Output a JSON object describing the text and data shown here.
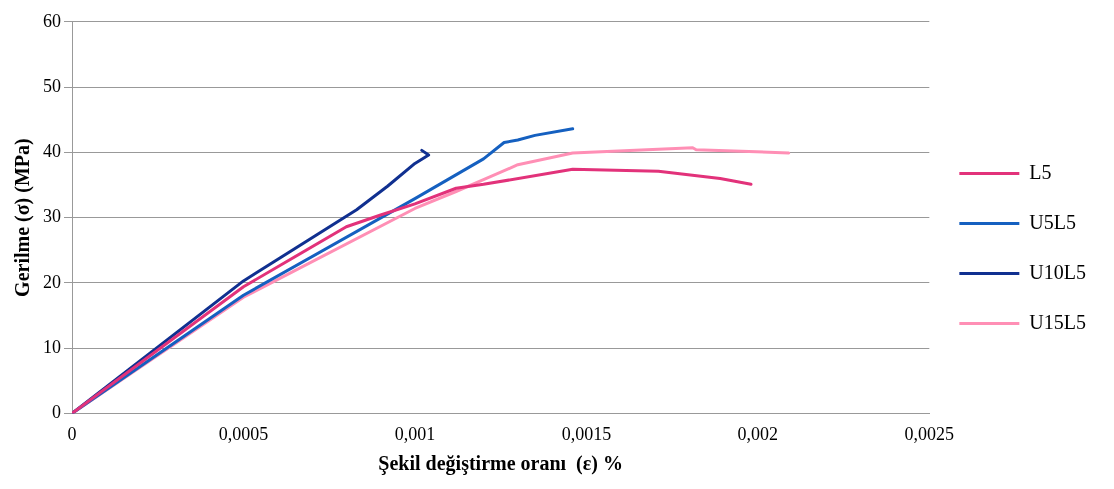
{
  "chart_data": {
    "type": "line",
    "xlabel": "Şekil değiştirme oranı  (ε) %",
    "ylabel": "Gerilme (σ) (MPa)",
    "xlim": [
      0,
      0.0025
    ],
    "xticks": [
      0,
      {
        "value": 0.0005,
        "label": "0,0005"
      },
      {
        "value": 0.001,
        "label": "0,001"
      },
      {
        "value": 0.0015,
        "label": "0,0015"
      },
      {
        "value": 0.002,
        "label": "0,002"
      },
      {
        "value": 0.0025,
        "label": "0,0025"
      }
    ],
    "ylim": [
      0,
      60
    ],
    "yticks": [
      0,
      10,
      20,
      30,
      40,
      50,
      60
    ],
    "grid": "y",
    "legend": "right",
    "marker": "none",
    "line_style": "solid",
    "series": [
      {
        "name": "L5",
        "color": "#e2327a",
        "x": [
          0,
          0.0005,
          0.0008,
          0.0009,
          0.001,
          0.00112,
          0.0012,
          0.00146,
          0.00171,
          0.00189,
          0.00198
        ],
        "values": [
          0,
          19.4,
          28.6,
          30.4,
          32.1,
          34.5,
          35.1,
          37.4,
          37.1,
          36.0,
          35.1
        ]
      },
      {
        "name": "U5L5",
        "color": "#1560c0",
        "x": [
          0,
          0.0005,
          0.001,
          0.0012,
          0.00126,
          0.0013,
          0.00135,
          0.00146
        ],
        "values": [
          0,
          18.1,
          32.9,
          39.0,
          41.5,
          41.9,
          42.6,
          43.6
        ]
      },
      {
        "name": "U10L5",
        "color": "#103090",
        "x": [
          0,
          0.0005,
          0.00083,
          0.00092,
          0.001,
          0.00104,
          0.00102
        ],
        "values": [
          0,
          20.3,
          31.2,
          34.8,
          38.3,
          39.6,
          40.3
        ]
      },
      {
        "name": "U15L5",
        "color": "#ff8fb5",
        "x": [
          0,
          0.0005,
          0.001,
          0.00112,
          0.0012,
          0.0013,
          0.00146,
          0.00181,
          0.00182,
          0.00209
        ],
        "values": [
          0,
          17.8,
          31.4,
          34.0,
          35.8,
          38.1,
          39.9,
          40.7,
          40.4,
          39.9
        ]
      }
    ]
  }
}
